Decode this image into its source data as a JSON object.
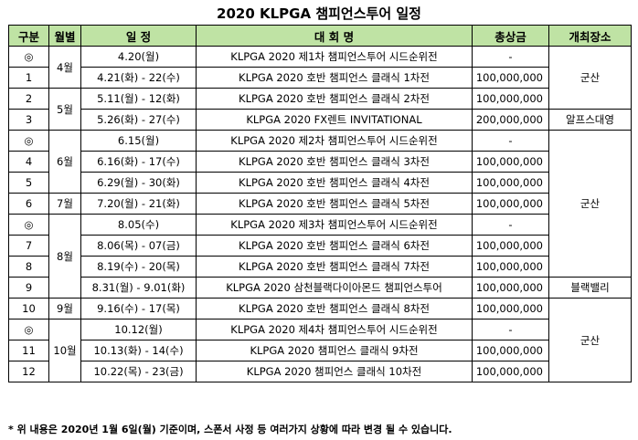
{
  "title": "2020 KLPGA 챔피언스투어 일정",
  "headers": [
    "구분",
    "월별",
    "일 정",
    "대 회 명",
    "총상금",
    "개최장소"
  ],
  "rows": [
    {
      "no": "◎",
      "date": "4.20(월)",
      "name": "KLPGA 2020 제1차 챔피언스투어 시드순위전",
      "prize": "-"
    },
    {
      "no": "1",
      "date": "4.21(화) - 22(수)",
      "name": "KLPGA 2020 호반 챔피언스 클래식 1차전",
      "prize": "100,000,000"
    },
    {
      "no": "2",
      "date": "5.11(월) - 12(화)",
      "name": "KLPGA 2020 호반 챔피언스 클래식 2차전",
      "prize": "100,000,000"
    },
    {
      "no": "3",
      "date": "5.26(화) - 27(수)",
      "name": "KLPGA 2020 FX렌트 INVITATIONAL",
      "prize": "200,000,000"
    },
    {
      "no": "◎",
      "date": "6.15(월)",
      "name": "KLPGA 2020 제2차 챔피언스투어 시드순위전",
      "prize": "-"
    },
    {
      "no": "4",
      "date": "6.16(화) - 17(수)",
      "name": "KLPGA 2020 호반 챔피언스 클래식 3차전",
      "prize": "100,000,000"
    },
    {
      "no": "5",
      "date": "6.29(월) - 30(화)",
      "name": "KLPGA 2020 호반 챔피언스 클래식 4차전",
      "prize": "100,000,000"
    },
    {
      "no": "6",
      "date": "7.20(월) - 21(화)",
      "name": "KLPGA 2020 호반 챔피언스 클래식 5차전",
      "prize": "100,000,000"
    },
    {
      "no": "◎",
      "date": "8.05(수)",
      "name": "KLPGA 2020 제3차 챔피언스투어 시드순위전",
      "prize": "-"
    },
    {
      "no": "7",
      "date": "8.06(목) - 07(금)",
      "name": "KLPGA 2020 호반 챔피언스 클래식 6차전",
      "prize": "100,000,000"
    },
    {
      "no": "8",
      "date": "8.19(수) - 20(목)",
      "name": "KLPGA 2020 호반 챔피언스 클래식 7차전",
      "prize": "100,000,000"
    },
    {
      "no": "9",
      "date": "8.31(월) - 9.01(화)",
      "name": "KLPGA 2020 삼천블랙다이아몬드 챔피언스투어",
      "prize": "100,000,000"
    },
    {
      "no": "10",
      "date": "9.16(수) - 17(목)",
      "name": "KLPGA 2020 호반 챔피언스 클래식 8차전",
      "prize": "100,000,000"
    },
    {
      "no": "◎",
      "date": "10.12(월)",
      "name": "KLPGA 2020 제4차 챔피언스투어 시드순위전",
      "prize": "-"
    },
    {
      "no": "11",
      "date": "10.13(화) - 14(수)",
      "name": "KLPGA 2020 챔피언스 클래식 9차전",
      "prize": "100,000,000"
    },
    {
      "no": "12",
      "date": "10.22(목) - 23(금)",
      "name": "KLPGA 2020 챔피언스 클래식 10차전",
      "prize": "100,000,000"
    }
  ],
  "months": [
    {
      "label": "4월",
      "start": 0,
      "span": 2
    },
    {
      "label": "5월",
      "start": 2,
      "span": 2
    },
    {
      "label": "6월",
      "start": 4,
      "span": 3
    },
    {
      "label": "7월",
      "start": 7,
      "span": 1
    },
    {
      "label": "8월",
      "start": 8,
      "span": 4
    },
    {
      "label": "9월",
      "start": 12,
      "span": 1
    },
    {
      "label": "10월",
      "start": 13,
      "span": 3
    }
  ],
  "venues": [
    {
      "label": "군산",
      "start": 0,
      "span": 3
    },
    {
      "label": "알프스대영",
      "start": 3,
      "span": 1
    },
    {
      "label": "군산",
      "start": 4,
      "span": 7
    },
    {
      "label": "블랙밸리",
      "start": 11,
      "span": 1
    },
    {
      "label": "군산",
      "start": 12,
      "span": 4
    }
  ],
  "header_color": "#bfe3a4",
  "footnote": "* 위 내용은 2020년 1월 6일(월) 기준이며, 스폰서 사정 등 여러가지 상황에 따라 변경 될 수 있습니다."
}
